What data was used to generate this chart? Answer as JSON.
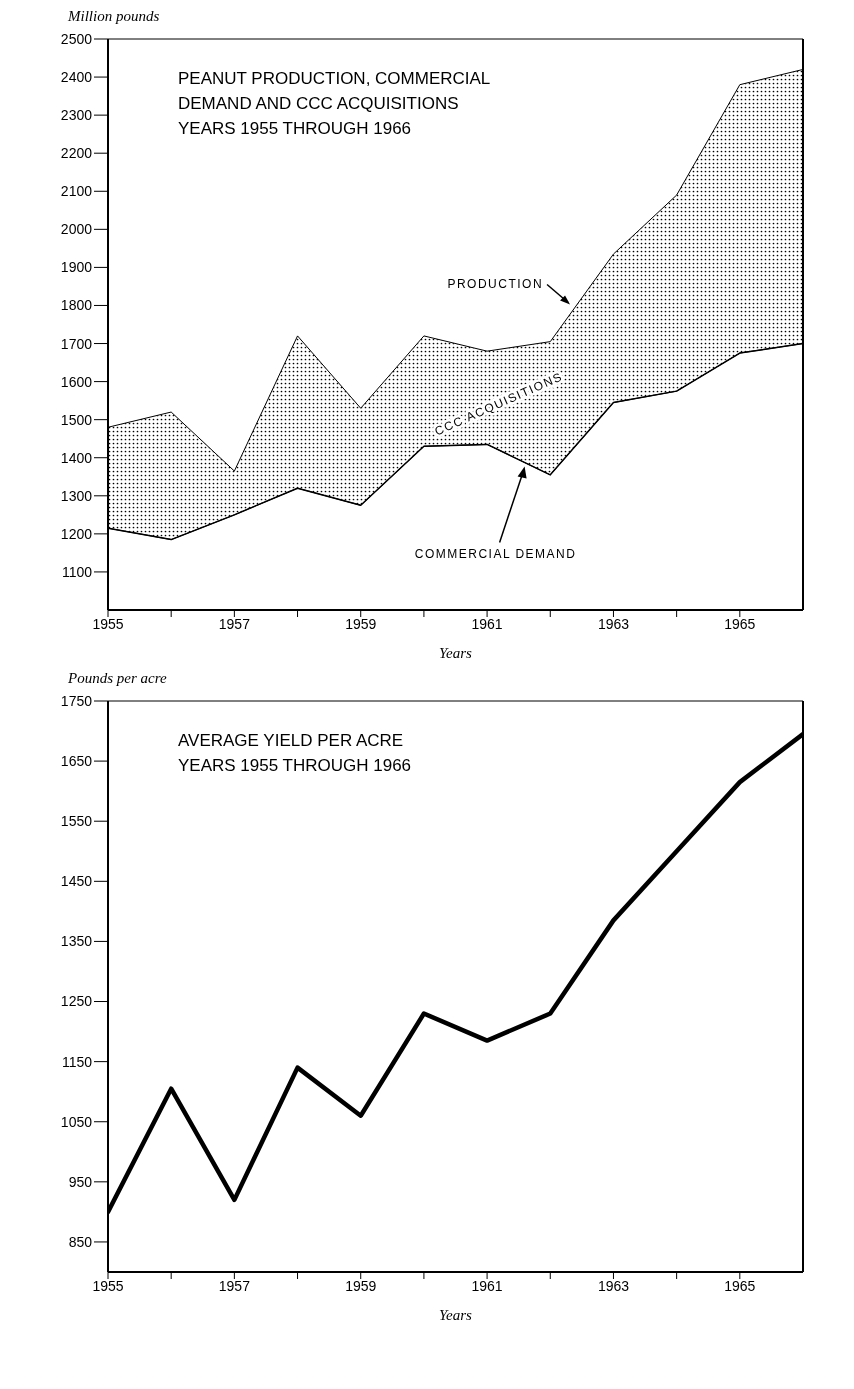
{
  "chart_data": [
    {
      "type": "area",
      "title": "PEANUT PRODUCTION, COMMERCIAL DEMAND AND CCC ACQUISITIONS",
      "subtitle": "YEARS 1955 THROUGH 1966",
      "xlabel": "Years",
      "ylabel": "Million pounds",
      "x": [
        1955,
        1956,
        1957,
        1958,
        1959,
        1960,
        1961,
        1962,
        1963,
        1964,
        1965,
        1966
      ],
      "xlim": [
        1955,
        1966
      ],
      "xticks": [
        1955,
        {
          "value": 1956,
          "label": null
        },
        1957,
        {
          "value": 1958,
          "label": null
        },
        1959,
        {
          "value": 1960,
          "label": null
        },
        1961,
        {
          "value": 1962,
          "label": null
        },
        1963,
        {
          "value": 1964,
          "label": null
        },
        1965
      ],
      "ylim": [
        1000,
        2500
      ],
      "yticks": [
        1100,
        1200,
        1300,
        1400,
        1500,
        1600,
        1700,
        1800,
        1900,
        2000,
        2100,
        2200,
        2300,
        2400,
        2500
      ],
      "series": [
        {
          "name": "PRODUCTION",
          "color": "#000000",
          "values": [
            1480,
            1520,
            1365,
            1720,
            1530,
            1720,
            1680,
            1705,
            1935,
            2090,
            2380,
            2420
          ]
        },
        {
          "name": "COMMERCIAL DEMAND",
          "type": "line",
          "color": "#000000",
          "values": [
            1215,
            1185,
            1250,
            1320,
            1275,
            1430,
            1435,
            1355,
            1545,
            1575,
            1675,
            1700
          ]
        }
      ],
      "annotations": [
        "CCC ACQUISITIONS"
      ]
    },
    {
      "type": "line",
      "title": "AVERAGE YIELD PER ACRE",
      "subtitle": "YEARS 1955 THROUGH 1966",
      "xlabel": "Years",
      "ylabel": "Pounds per acre",
      "x": [
        1955,
        1956,
        1957,
        1958,
        1959,
        1960,
        1961,
        1962,
        1963,
        1964,
        1965,
        1966
      ],
      "xlim": [
        1955,
        1966
      ],
      "xticks": [
        1955,
        {
          "value": 1956,
          "label": null
        },
        1957,
        {
          "value": 1958,
          "label": null
        },
        1959,
        {
          "value": 1960,
          "label": null
        },
        1961,
        {
          "value": 1962,
          "label": null
        },
        1963,
        {
          "value": 1964,
          "label": null
        },
        1965
      ],
      "ylim": [
        800,
        1750
      ],
      "yticks": [
        850,
        950,
        1050,
        1150,
        1250,
        1350,
        1450,
        1550,
        1650,
        1750
      ],
      "series": [
        {
          "color": "#000000",
          "values": [
            900,
            1105,
            920,
            1140,
            1060,
            1230,
            1185,
            1230,
            1385,
            1500,
            1615,
            1695
          ]
        }
      ]
    }
  ]
}
